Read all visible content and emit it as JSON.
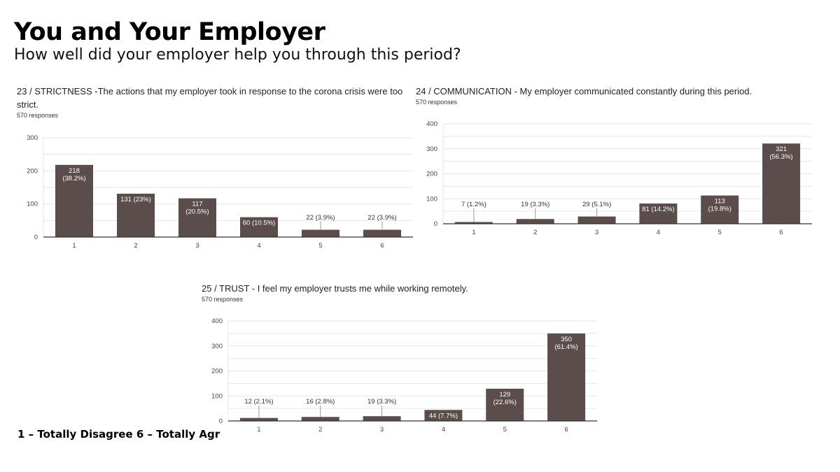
{
  "header": {
    "title": "You and Your Employer",
    "subtitle": "How well did your employer help you through this period?"
  },
  "scale_note": "1 – Totally Disagree 6 – Totally Agr",
  "colors": {
    "bar": "#5b4d4b",
    "grid": "#e6e6e6",
    "axis": "#333333",
    "label_inside": "#ffffff",
    "label_outside": "#333333"
  },
  "chart_data": [
    {
      "type": "bar",
      "title": "23 / STRICTNESS -The actions that my employer took in response to the corona crisis were too strict.",
      "responses": "570 responses",
      "categories": [
        "1",
        "2",
        "3",
        "4",
        "5",
        "6"
      ],
      "values": [
        218,
        131,
        117,
        60,
        22,
        22
      ],
      "data_labels": [
        "218 (38.2%)",
        "131 (23%)",
        "117 (20.5%)",
        "60 (10.5%)",
        "22 (3.9%)",
        "22 (3.9%)"
      ],
      "yticks": [
        "0",
        "100",
        "200",
        "300"
      ],
      "ylim": [
        0,
        300
      ],
      "xlabel": "",
      "ylabel": "",
      "grid": true
    },
    {
      "type": "bar",
      "title": "24 / COMMUNICATION - My employer communicated constantly during this period.",
      "responses": "570 responses",
      "categories": [
        "1",
        "2",
        "3",
        "4",
        "5",
        "6"
      ],
      "values": [
        7,
        19,
        29,
        81,
        113,
        321
      ],
      "data_labels": [
        "7 (1.2%)",
        "19 (3.3%)",
        "29 (5.1%)",
        "81 (14.2%)",
        "113 (19.8%)",
        "321 (56.3%)"
      ],
      "yticks": [
        "0",
        "100",
        "200",
        "300",
        "400"
      ],
      "ylim": [
        0,
        400
      ],
      "xlabel": "",
      "ylabel": "",
      "grid": true
    },
    {
      "type": "bar",
      "title": "25 / TRUST - I feel my employer trusts me while working remotely.",
      "responses": "570 responses",
      "categories": [
        "1",
        "2",
        "3",
        "4",
        "5",
        "6"
      ],
      "values": [
        12,
        16,
        19,
        44,
        129,
        350
      ],
      "data_labels": [
        "12 (2.1%)",
        "16 (2.8%)",
        "19 (3.3%)",
        "44 (7.7%)",
        "129 (22.6%)",
        "350 (61.4%)"
      ],
      "yticks": [
        "0",
        "100",
        "200",
        "300",
        "400"
      ],
      "ylim": [
        0,
        400
      ],
      "xlabel": "",
      "ylabel": "",
      "grid": true
    }
  ]
}
